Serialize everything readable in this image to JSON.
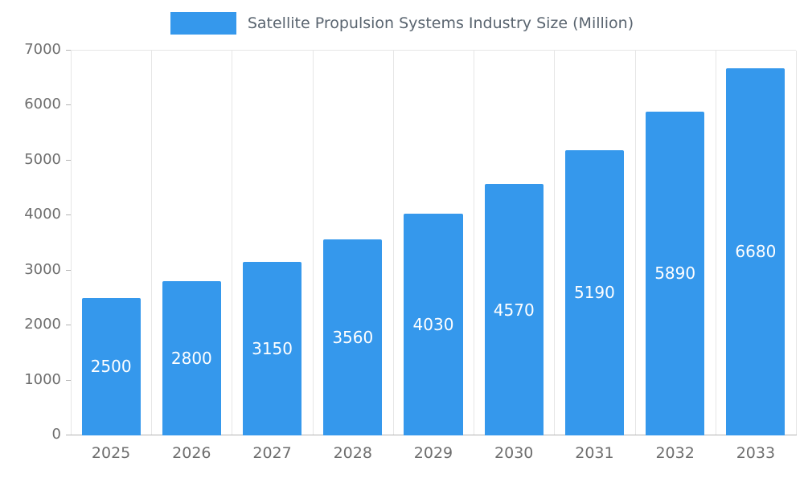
{
  "chart_data": {
    "type": "bar",
    "title": "Satellite Propulsion Systems Industry Size (Million)",
    "categories": [
      "2025",
      "2026",
      "2027",
      "2028",
      "2029",
      "2030",
      "2031",
      "2032",
      "2033"
    ],
    "values": [
      2500,
      2800,
      3150,
      3560,
      4030,
      4570,
      5190,
      5890,
      6680
    ],
    "xlabel": "",
    "ylabel": "",
    "ylim": [
      0,
      7000
    ],
    "yticks": [
      0,
      1000,
      2000,
      3000,
      4000,
      5000,
      6000,
      7000
    ],
    "grid": "vertical",
    "legend_position": "top-center",
    "bar_value_labels_position": "center",
    "colors": {
      "bar": "#3598EC",
      "bar_label": "#FFFFFF",
      "grid": "#E6E6E6",
      "axis_line": "#B3B3B3",
      "tick_label": "#6E6E6E",
      "legend_text": "#5A6570",
      "background": "#FFFFFF"
    }
  }
}
